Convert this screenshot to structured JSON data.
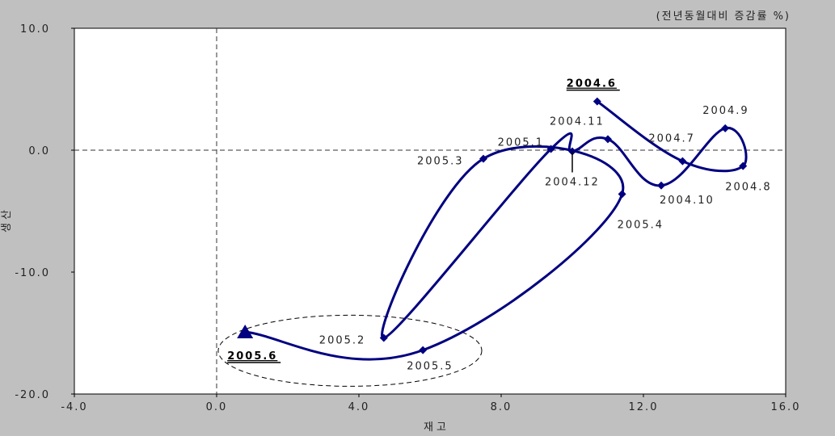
{
  "chart_data": {
    "type": "line",
    "unit_note": "(전년동월대비 증감률 %)",
    "xlabel": "재고",
    "ylabel": "생산",
    "xlim": [
      -4.0,
      16.0
    ],
    "ylim": [
      -20.0,
      10.0
    ],
    "x_ticks": [
      "-4.0",
      "0.0",
      "4.0",
      "8.0",
      "12.0",
      "16.0"
    ],
    "y_ticks": [
      "10.0",
      "0.0",
      "-10.0",
      "-20.0"
    ],
    "grid": false,
    "reference_lines": {
      "x": 0.0,
      "y": 0.0
    },
    "series": [
      {
        "points": [
          {
            "label": "2004.6",
            "x": 10.7,
            "y": 4.0,
            "highlight": true
          },
          {
            "label": "2004.7",
            "x": 13.1,
            "y": -0.9
          },
          {
            "label": "2004.8",
            "x": 14.8,
            "y": -1.3
          },
          {
            "label": "2004.9",
            "x": 14.3,
            "y": 1.8
          },
          {
            "label": "2004.10",
            "x": 12.5,
            "y": -2.9
          },
          {
            "label": "2004.11",
            "x": 11.0,
            "y": 0.9
          },
          {
            "label": "2004.12",
            "x": 10.0,
            "y": -0.1
          },
          {
            "label": "2005.1",
            "x": 9.4,
            "y": 0.1
          },
          {
            "label": "2005.2",
            "x": 4.7,
            "y": -15.4
          },
          {
            "label": "2005.3",
            "x": 7.5,
            "y": -0.7
          },
          {
            "label": "2005.4",
            "x": 11.4,
            "y": -3.6
          },
          {
            "label": "2005.5",
            "x": 5.8,
            "y": -16.4
          },
          {
            "label": "2005.6",
            "x": 0.8,
            "y": -14.9,
            "highlight": true
          }
        ]
      }
    ]
  },
  "colors": {
    "series": "#000080",
    "plot_bg": "#ffffff",
    "page_bg": "#c0c0c0"
  }
}
